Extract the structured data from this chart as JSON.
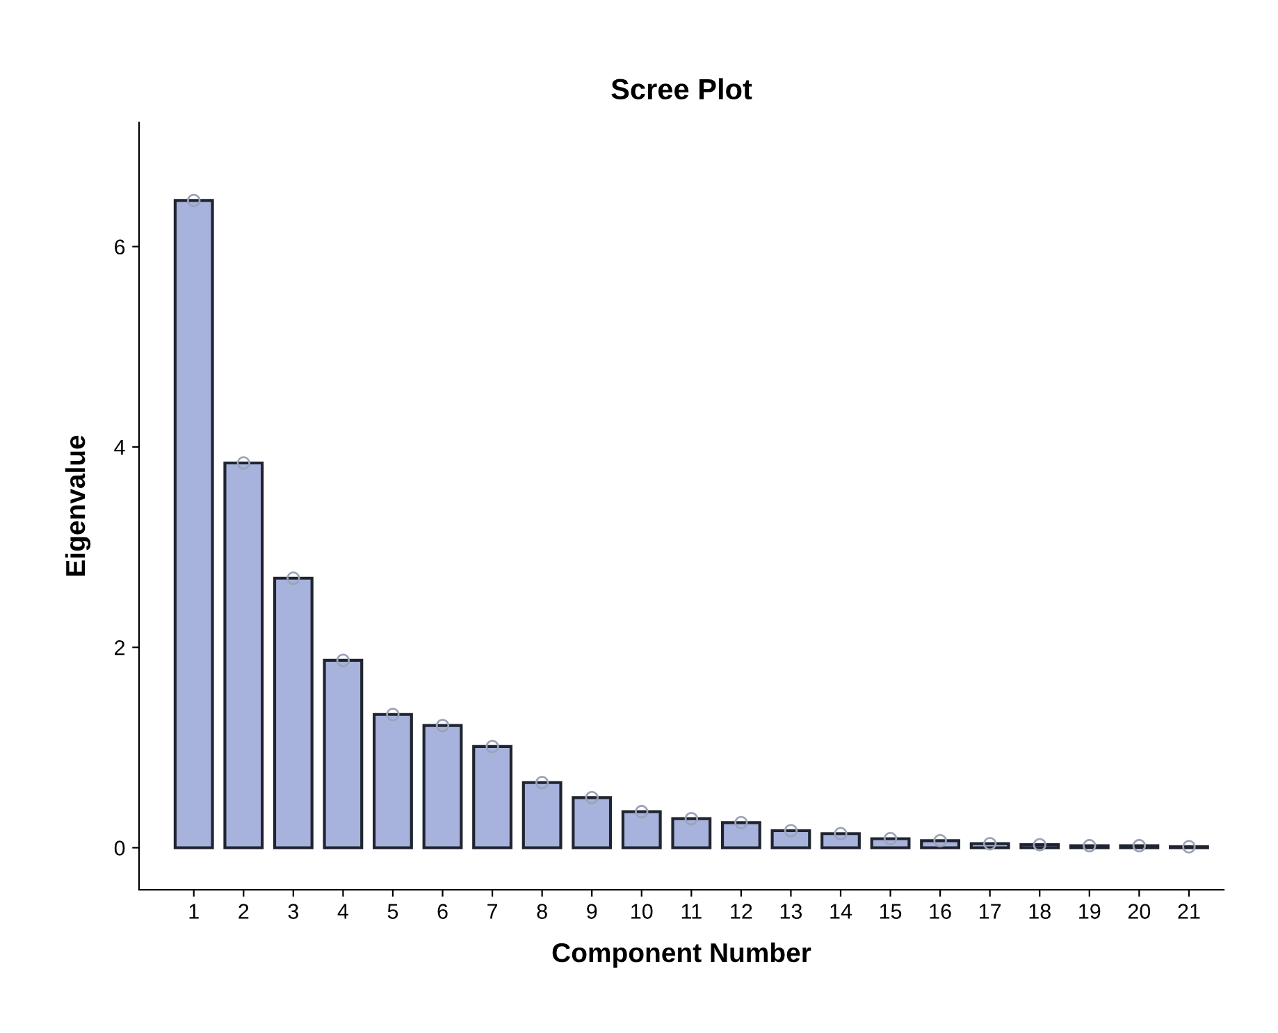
{
  "chart_data": {
    "type": "bar",
    "title": "Scree Plot",
    "xlabel": "Component Number",
    "ylabel": "Eigenvalue",
    "categories": [
      "1",
      "2",
      "3",
      "4",
      "5",
      "6",
      "7",
      "8",
      "9",
      "10",
      "11",
      "12",
      "13",
      "14",
      "15",
      "16",
      "17",
      "18",
      "19",
      "20",
      "21"
    ],
    "series": [
      {
        "color": "#a7b3dd",
        "values": [
          6.46,
          3.84,
          2.69,
          1.87,
          1.33,
          1.22,
          1.01,
          0.65,
          0.5,
          0.36,
          0.29,
          0.25,
          0.17,
          0.14,
          0.09,
          0.07,
          0.04,
          0.03,
          0.02,
          0.02,
          0.01
        ]
      },
      {
        "type": "scatter",
        "color": "#9aa4b8",
        "marker": "circle",
        "values": [
          6.46,
          3.84,
          2.69,
          1.87,
          1.33,
          1.22,
          1.01,
          0.65,
          0.5,
          0.36,
          0.29,
          0.25,
          0.17,
          0.14,
          0.09,
          0.07,
          0.04,
          0.03,
          0.02,
          0.02,
          0.01
        ]
      }
    ],
    "ylim": [
      -0.42,
      7.24
    ],
    "yticks": [
      0,
      2,
      4,
      6
    ],
    "grid": false
  }
}
